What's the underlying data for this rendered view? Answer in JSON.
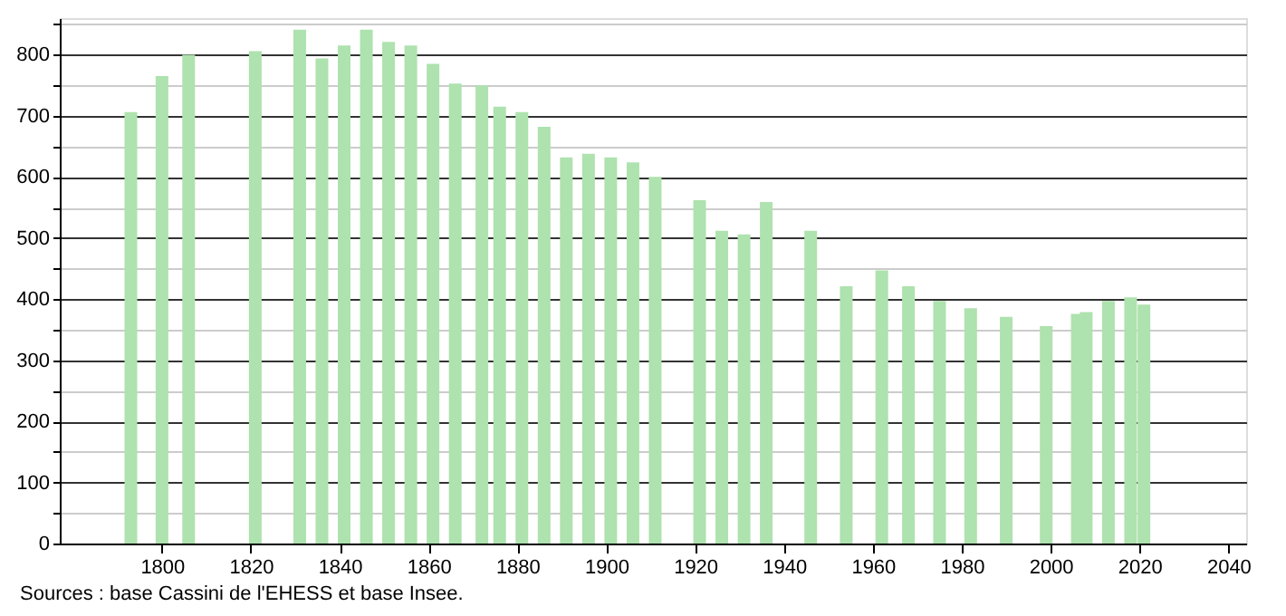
{
  "chart_data": {
    "type": "bar",
    "x": [
      1793,
      1800,
      1806,
      1821,
      1831,
      1836,
      1841,
      1846,
      1851,
      1856,
      1861,
      1866,
      1872,
      1876,
      1881,
      1886,
      1891,
      1896,
      1901,
      1906,
      1911,
      1921,
      1926,
      1931,
      1936,
      1946,
      1954,
      1962,
      1968,
      1975,
      1982,
      1990,
      1999,
      2006,
      2008,
      2013,
      2018,
      2021
    ],
    "series": [
      {
        "color": "#aee2ae",
        "values": [
          706,
          765,
          800,
          806,
          841,
          794,
          815,
          841,
          821,
          815,
          785,
          753,
          750,
          715,
          706,
          682,
          632,
          638,
          632,
          624,
          600,
          562,
          512,
          506,
          559,
          512,
          421,
          447,
          421,
          397,
          385,
          371,
          356,
          376,
          379,
          397,
          403,
          391
        ]
      }
    ],
    "xlim": [
      1777,
      2044
    ],
    "xticks": [
      1800,
      1820,
      1840,
      1860,
      1880,
      1900,
      1920,
      1940,
      1960,
      1980,
      2000,
      2020,
      2040
    ],
    "ylim": [
      0,
      860
    ],
    "yticks": [
      0,
      {
        "value": 50,
        "label": null
      },
      100,
      {
        "value": 150,
        "label": null
      },
      200,
      {
        "value": 250,
        "label": null
      },
      300,
      {
        "value": 350,
        "label": null
      },
      400,
      {
        "value": 450,
        "label": null
      },
      500,
      {
        "value": 550,
        "label": null
      },
      600,
      {
        "value": 650,
        "label": null
      },
      700,
      {
        "value": 750,
        "label": null
      },
      800,
      {
        "value": 850,
        "label": null
      }
    ],
    "grid": "y",
    "annotations": [
      "Sources : base Cassini de l'EHESS et base Insee."
    ]
  }
}
